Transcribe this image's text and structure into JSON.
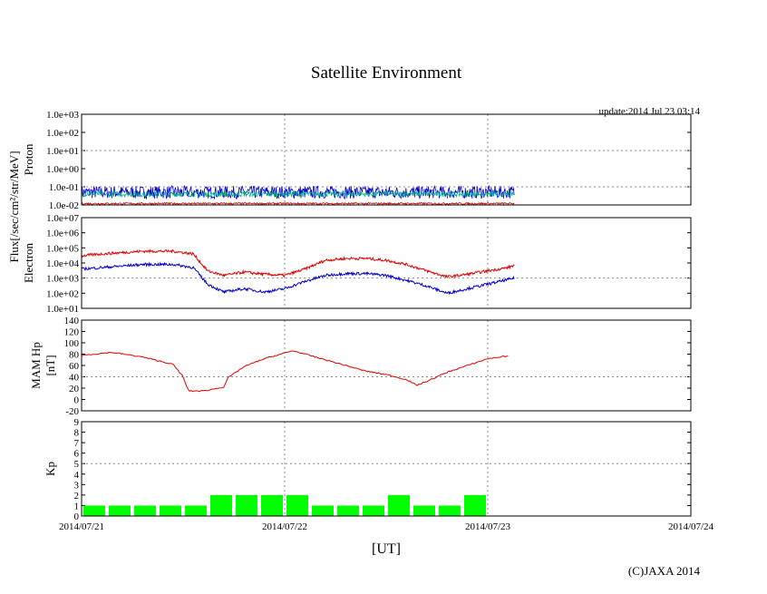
{
  "chart_data": {
    "title": "Satellite Environment",
    "update": "update:2014 Jul 23 03:14",
    "copyright": "(C)JAXA 2014",
    "xlabel": "[UT]",
    "x_ticks": [
      "2014/07/21",
      "2014/07/22",
      "2014/07/23",
      "2014/07/24"
    ],
    "shared_ylabel": "Flux[/sec/cm²/str/MeV]",
    "panels": [
      {
        "type": "line",
        "ylabel": "Proton",
        "yscale": "log",
        "ylim": [
          0.01,
          1000
        ],
        "y_ticks": [
          "1.0e-02",
          "1.0e-01",
          "1.0e+00",
          "1.0e+01",
          "1.0e+02",
          "1.0e+03"
        ],
        "series": [
          {
            "color": "#0000cc",
            "base": 0.05,
            "noise": 0.35
          },
          {
            "color": "#00aa88",
            "base": 0.04,
            "noise": 0.15
          },
          {
            "color": "#cc0000",
            "base": 0.012,
            "noise": 0.05
          }
        ]
      },
      {
        "type": "line",
        "ylabel": "Electron",
        "yscale": "log",
        "ylim": [
          10,
          10000000
        ],
        "y_ticks": [
          "1.0e+01",
          "1.0e+02",
          "1.0e+03",
          "1.0e+04",
          "1.0e+05",
          "1.0e+06",
          "1.0e+07"
        ],
        "series": [
          {
            "color": "#dd0000",
            "x": [
              0,
              0.1,
              0.3,
              0.45,
              0.55,
              0.62,
              0.7,
              0.8,
              0.9,
              1.0,
              1.1,
              1.2,
              1.3,
              1.4,
              1.5,
              1.6,
              1.7,
              1.8,
              1.9,
              2.0,
              2.1,
              2.13
            ],
            "y": [
              30000,
              40000,
              60000,
              60000,
              40000,
              3000,
              1500,
              2500,
              1800,
              1500,
              4000,
              15000,
              20000,
              20000,
              15000,
              8000,
              3000,
              1200,
              1800,
              3000,
              5000,
              7000
            ]
          },
          {
            "color": "#0000cc",
            "x": [
              0,
              0.1,
              0.3,
              0.45,
              0.55,
              0.62,
              0.7,
              0.8,
              0.9,
              1.0,
              1.1,
              1.2,
              1.3,
              1.4,
              1.5,
              1.6,
              1.7,
              1.8,
              1.9,
              2.0,
              2.1,
              2.13
            ],
            "y": [
              4000,
              5000,
              8000,
              8000,
              5000,
              400,
              120,
              200,
              120,
              200,
              600,
              1500,
              2000,
              2000,
              1500,
              700,
              300,
              100,
              200,
              400,
              800,
              1000
            ]
          }
        ]
      },
      {
        "type": "line",
        "ylabel": "MAM Hp",
        "ylabel2": "[nT]",
        "yscale": "linear",
        "ylim": [
          -20,
          140
        ],
        "y_ticks": [
          "-20",
          "0",
          "20",
          "40",
          "60",
          "80",
          "100",
          "120",
          "140"
        ],
        "series": [
          {
            "color": "#dd0000",
            "x": [
              0,
              0.15,
              0.3,
              0.45,
              0.5,
              0.52,
              0.53,
              0.6,
              0.7,
              0.72,
              0.8,
              0.9,
              1.0,
              1.04,
              1.1,
              1.2,
              1.3,
              1.4,
              1.5,
              1.6,
              1.65,
              1.7,
              1.8,
              1.9,
              2.0,
              2.1
            ],
            "y": [
              78,
              83,
              75,
              62,
              40,
              20,
              15,
              15,
              22,
              38,
              58,
              72,
              82,
              86,
              80,
              70,
              60,
              50,
              44,
              35,
              25,
              32,
              48,
              60,
              72,
              77
            ]
          }
        ]
      },
      {
        "type": "bar",
        "ylabel": "Kp",
        "yscale": "linear",
        "ylim": [
          0,
          9
        ],
        "y_ticks": [
          "0",
          "1",
          "2",
          "3",
          "4",
          "5",
          "6",
          "7",
          "8",
          "9"
        ],
        "bar_color": "#00ff00",
        "bar_width_days": 0.125,
        "values": [
          1,
          1,
          1,
          1,
          1,
          2,
          2,
          2,
          2,
          1,
          1,
          1,
          2,
          1,
          1,
          2
        ]
      }
    ],
    "x_range_days": [
      0,
      3
    ],
    "grid": "dotted at day boundaries and selected y levels"
  }
}
